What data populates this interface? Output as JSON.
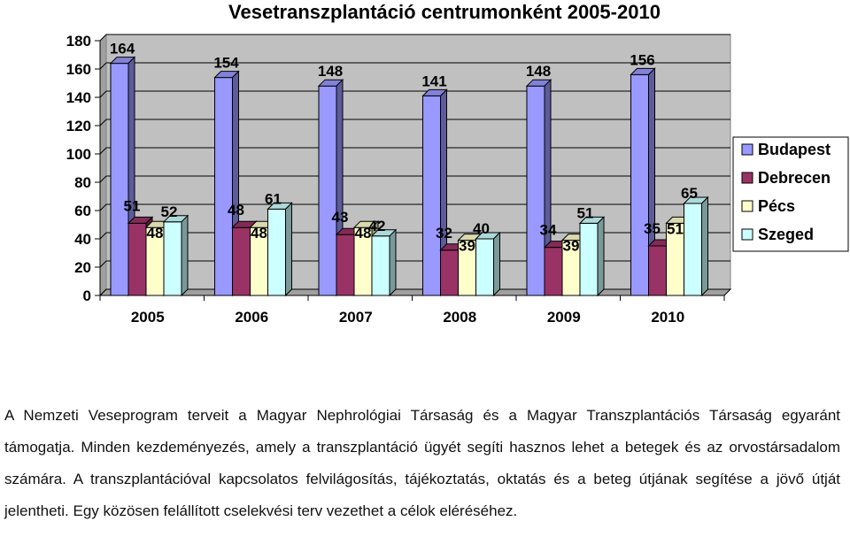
{
  "chart_data": {
    "type": "bar",
    "title": "Vesetranszplantáció centrumonként 2005-2010",
    "categories": [
      "2005",
      "2006",
      "2007",
      "2008",
      "2009",
      "2010"
    ],
    "series": [
      {
        "name": "Budapest",
        "values": [
          164,
          154,
          148,
          141,
          148,
          156
        ],
        "color": "#9999ff"
      },
      {
        "name": "Debrecen",
        "values": [
          51,
          48,
          43,
          32,
          34,
          35
        ],
        "color": "#993366"
      },
      {
        "name": "Pécs",
        "values": [
          48,
          48,
          48,
          39,
          39,
          51
        ],
        "color": "#ffffcc"
      },
      {
        "name": "Szeged",
        "values": [
          52,
          61,
          42,
          40,
          51,
          65
        ],
        "color": "#ccffff"
      }
    ],
    "y_ticks": [
      "0",
      "20",
      "40",
      "60",
      "80",
      "100",
      "120",
      "140",
      "160",
      "180"
    ],
    "ylim": [
      0,
      180
    ],
    "grid": true,
    "legend": "right",
    "style": "3d-clustered"
  },
  "paragraph": "A Nemzeti Veseprogram terveit a Magyar Nephrológiai Társaság és a Magyar Transzplantációs Társaság egyaránt támogatja. Minden kezdeményezés, amely a transzplantáció ügyét segíti hasznos lehet a betegek és az orvostársadalom számára. A transzplantációval kapcsolatos felvilágosítás, tájékoztatás, oktatás és a beteg útjának segítése a jövő útját jelentheti. Egy közösen felállított cselekvési terv vezethet a célok eléréséhez."
}
